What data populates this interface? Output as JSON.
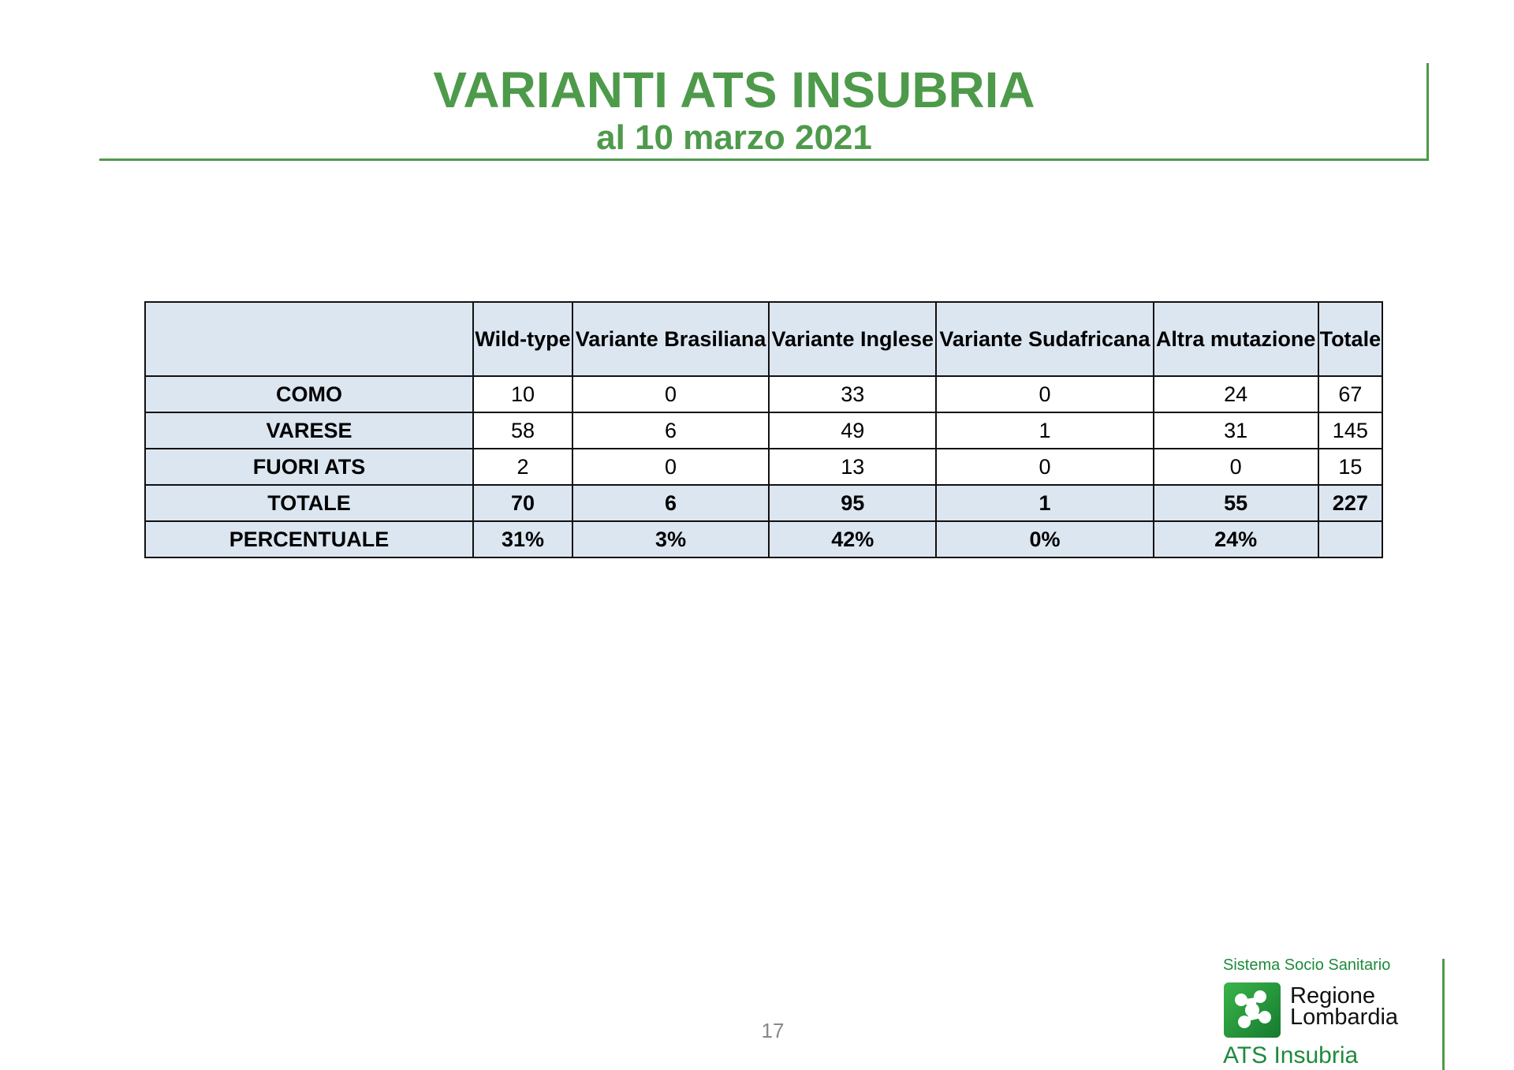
{
  "header": {
    "title": "VARIANTI ATS INSUBRIA",
    "subtitle": "al 10 marzo 2021"
  },
  "table": {
    "columns": [
      "",
      "Wild-type",
      "Variante Brasiliana",
      "Variante Inglese",
      "Variante Sudafricana",
      "Altra mutazione",
      "Totale"
    ],
    "rows": [
      {
        "label": "COMO",
        "values": [
          "10",
          "0",
          "33",
          "0",
          "24",
          "67"
        ]
      },
      {
        "label": "VARESE",
        "values": [
          "58",
          "6",
          "49",
          "1",
          "31",
          "145"
        ]
      },
      {
        "label": "FUORI ATS",
        "values": [
          "2",
          "0",
          "13",
          "0",
          "0",
          "15"
        ]
      },
      {
        "label": "TOTALE",
        "values": [
          "70",
          "6",
          "95",
          "1",
          "55",
          "227"
        ]
      },
      {
        "label": "PERCENTUALE",
        "values": [
          "31%",
          "3%",
          "42%",
          "0%",
          "24%",
          ""
        ]
      }
    ]
  },
  "footer": {
    "page_number": "17",
    "logo": {
      "line1": "Sistema Socio Sanitario",
      "line2": "Regione",
      "line3": "Lombardia",
      "line4": "ATS Insubria",
      "color": "#1e8a3c"
    }
  },
  "colors": {
    "accent": "#4e9a4b",
    "header_fill": "#dce6f1"
  }
}
